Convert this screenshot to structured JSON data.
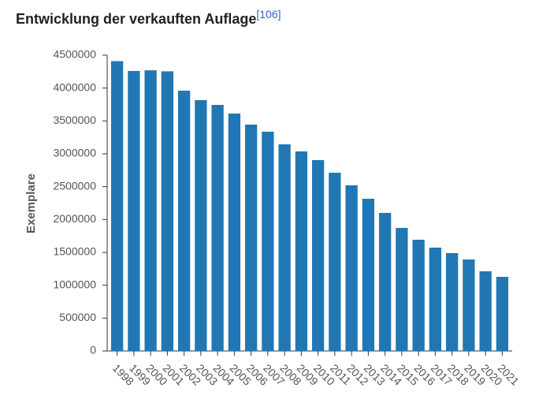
{
  "chart_data": {
    "type": "bar",
    "title": "Entwicklung der verkauften Auflage",
    "title_ref": "[106]",
    "y_label": "Exemplare",
    "categories": [
      "1998",
      "1999",
      "2000",
      "2001",
      "2002",
      "2003",
      "2004",
      "2005",
      "2006",
      "2007",
      "2008",
      "2009",
      "2010",
      "2011",
      "2012",
      "2013",
      "2014",
      "2015",
      "2016",
      "2017",
      "2018",
      "2019",
      "2020",
      "2021"
    ],
    "values": [
      4410000,
      4260000,
      4270000,
      4255000,
      3960000,
      3816000,
      3744000,
      3612000,
      3444000,
      3336000,
      3144000,
      3036000,
      2904000,
      2712000,
      2520000,
      2316000,
      2100000,
      1872000,
      1692000,
      1572000,
      1488000,
      1392000,
      1212000,
      1128000
    ],
    "color": "#2077b4",
    "ylim": [
      0,
      4500000
    ],
    "yticks": [
      0,
      500000,
      1000000,
      1500000,
      2000000,
      2500000,
      3000000,
      3500000,
      4000000,
      4500000
    ],
    "grid": false
  }
}
